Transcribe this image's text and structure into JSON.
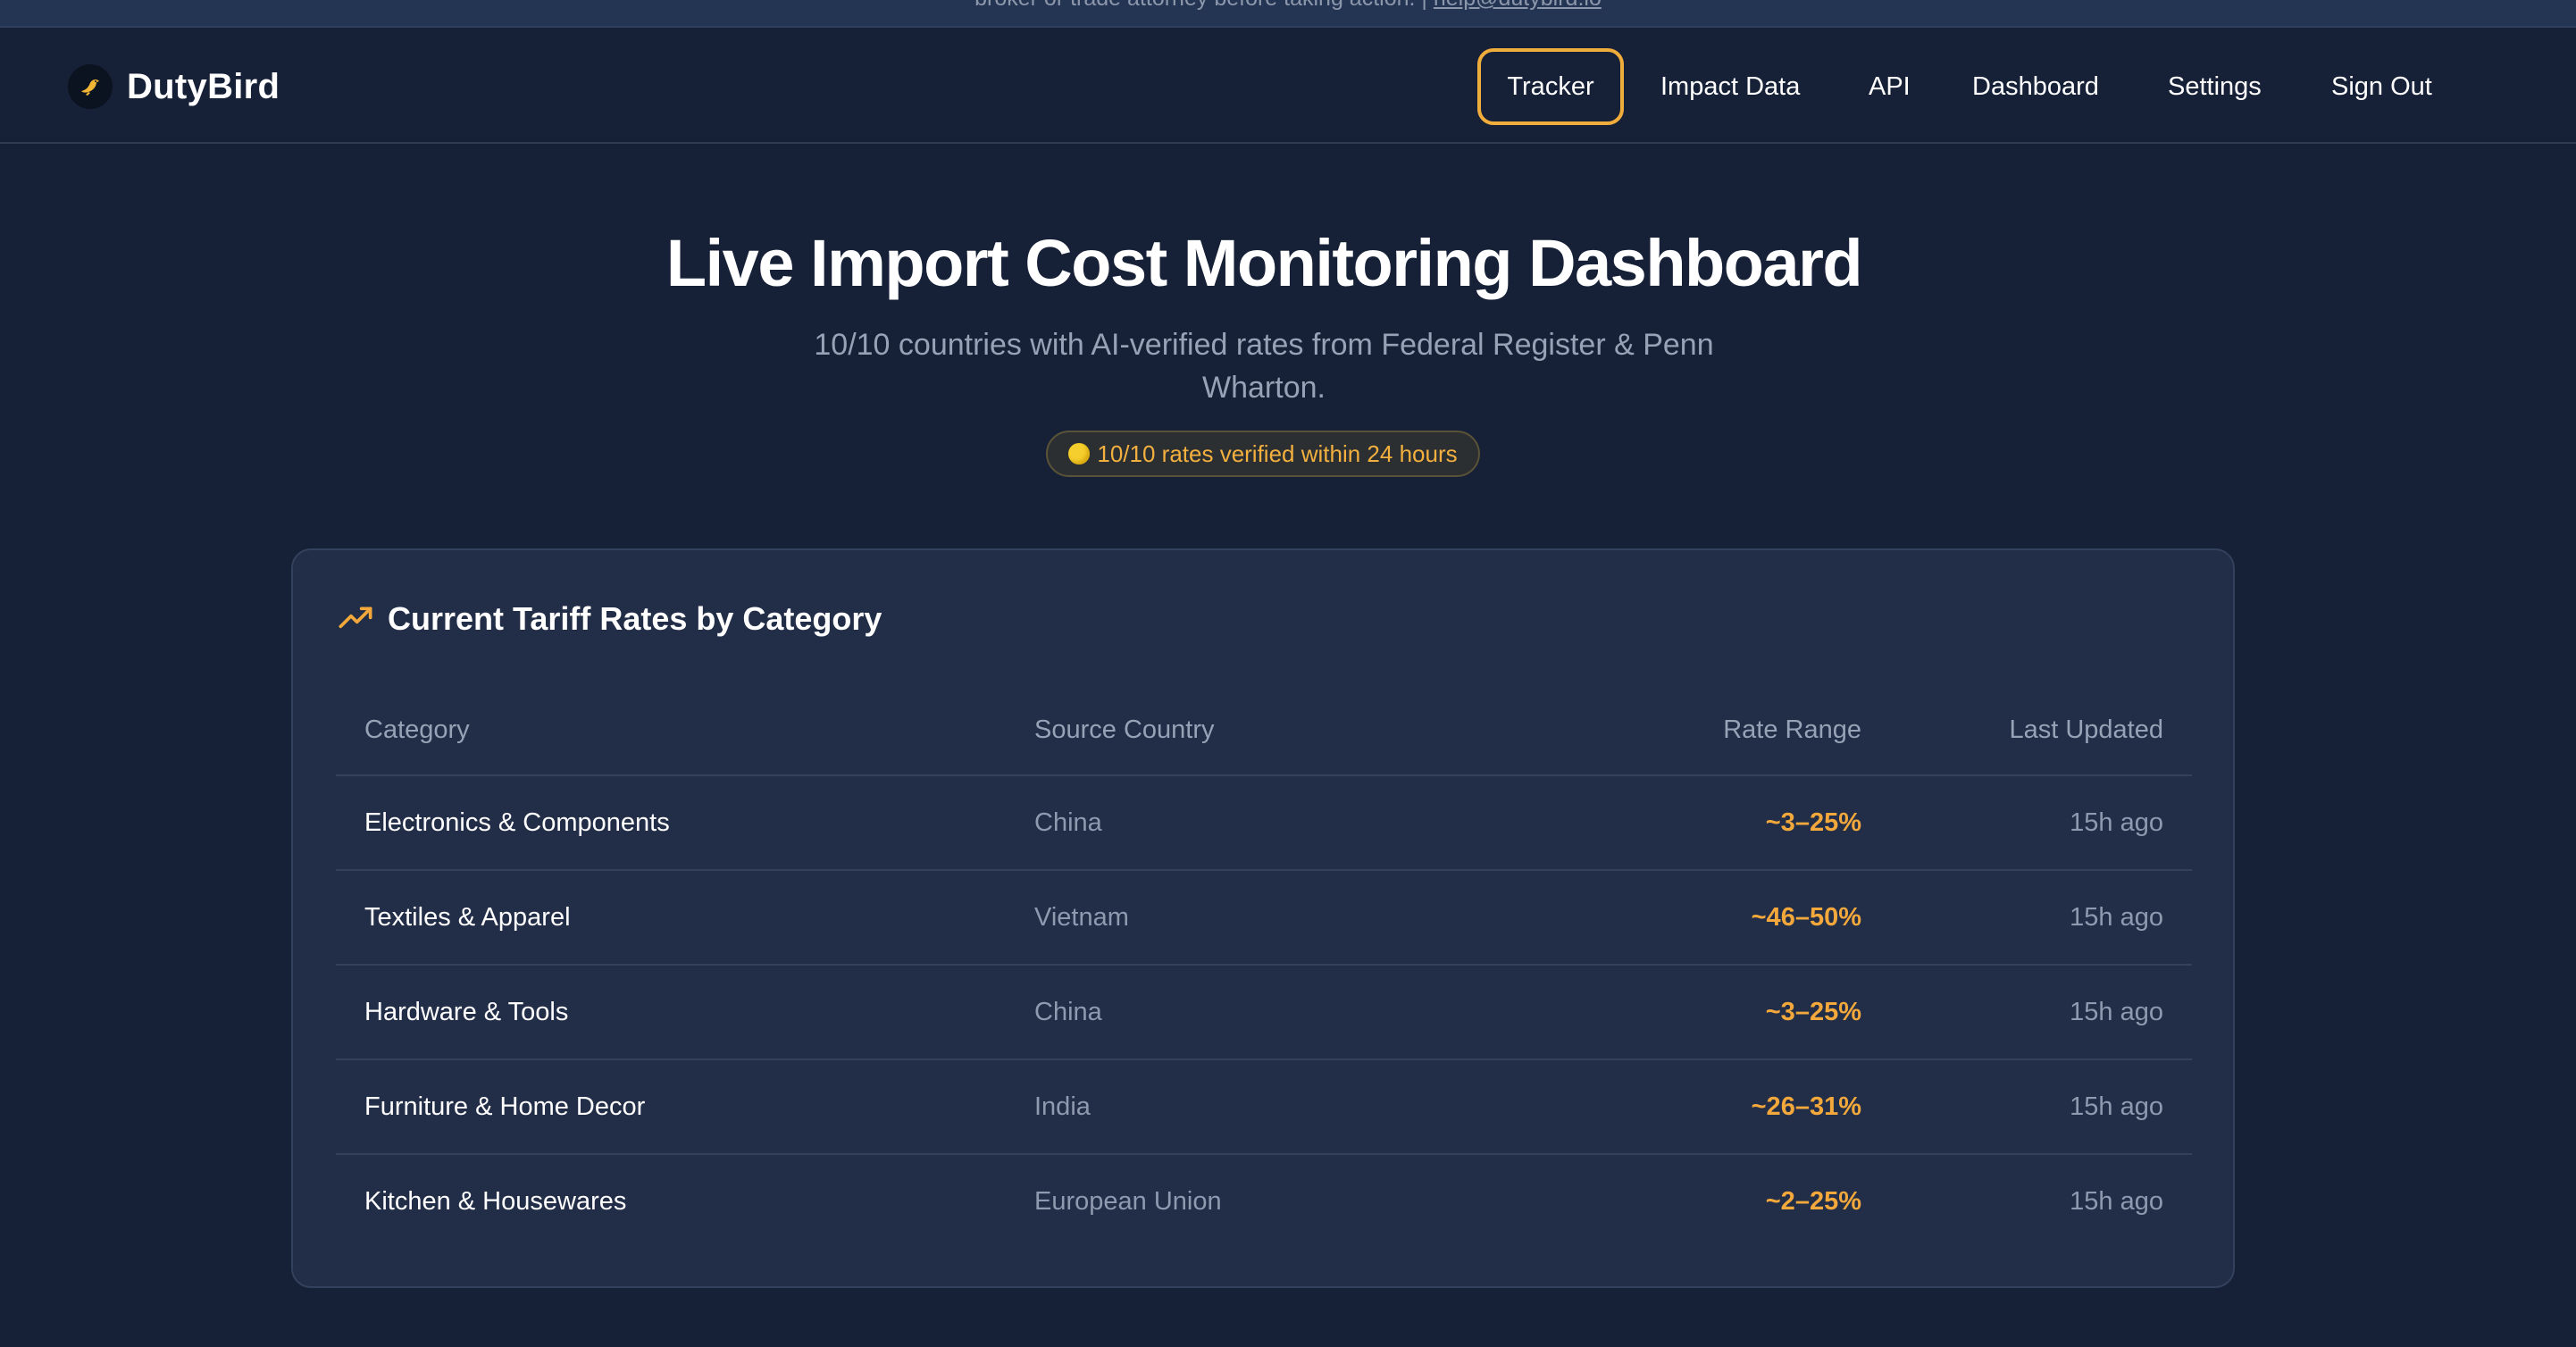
{
  "announcement": {
    "text": "broker or trade attorney before taking action. | ",
    "email": "help@dutybird.io"
  },
  "brand": {
    "name": "DutyBird",
    "logo_icon": "bird-icon"
  },
  "nav": {
    "tracker": "Tracker",
    "impact_data": "Impact Data",
    "api": "API",
    "dashboard": "Dashboard",
    "settings": "Settings",
    "sign_out": "Sign Out"
  },
  "hero": {
    "title": "Live Import Cost Monitoring Dashboard",
    "subtitle": "10/10 countries with AI-verified rates from Federal Register & Penn Wharton.",
    "badge": "10/10 rates verified within 24 hours"
  },
  "card": {
    "title": "Current Tariff Rates by Category",
    "icon": "trending-up-icon",
    "columns": [
      "Category",
      "Source Country",
      "Rate Range",
      "Last Updated"
    ],
    "rows": [
      {
        "category": "Electronics & Components",
        "country": "China",
        "rate": "~3–25%",
        "updated": "15h ago"
      },
      {
        "category": "Textiles & Apparel",
        "country": "Vietnam",
        "rate": "~46–50%",
        "updated": "15h ago"
      },
      {
        "category": "Hardware & Tools",
        "country": "China",
        "rate": "~3–25%",
        "updated": "15h ago"
      },
      {
        "category": "Furniture & Home Decor",
        "country": "India",
        "rate": "~26–31%",
        "updated": "15h ago"
      },
      {
        "category": "Kitchen & Housewares",
        "country": "European Union",
        "rate": "~2–25%",
        "updated": "15h ago"
      }
    ]
  },
  "colors": {
    "background": "#162037",
    "card": "#222d48",
    "accent": "#f3a83c",
    "muted_text": "#97a2b6"
  }
}
